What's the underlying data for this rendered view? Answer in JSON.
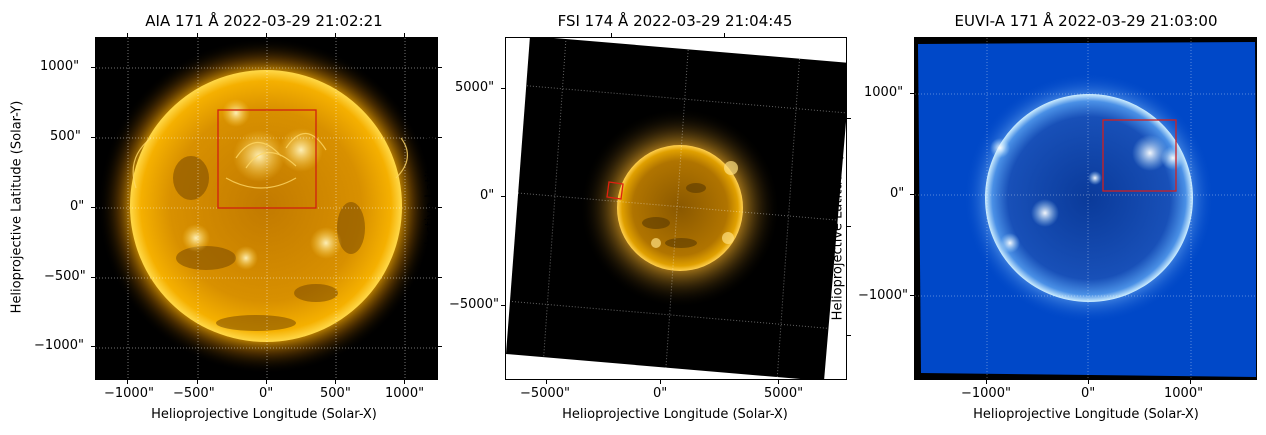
{
  "panels": [
    {
      "title": "AIA 171 Å 2022-03-29 21:02:21",
      "xlabel": "Helioprojective Longitude (Solar-X)",
      "ylabel": "Helioprojective Latitude (Solar-Y)",
      "xticks": [
        "−1000\"",
        "−500\"",
        "0\"",
        "500\"",
        "1000\""
      ],
      "yticks": [
        "1000\"",
        "500\"",
        "0\"",
        "−500\"",
        "−1000\""
      ],
      "colormap": "sdoaia171",
      "colors": {
        "disk": "#f6a800",
        "limb": "#ffcc33",
        "background": "#000000",
        "box": "#d02010"
      }
    },
    {
      "title": "FSI 174 Å 2022-03-29 21:04:45",
      "xlabel": "Helioprojective Longitude (Solar-X)",
      "ylabel": "",
      "xticks": [
        "−5000\"",
        "0\"",
        "5000\""
      ],
      "yticks": [
        "5000\"",
        "0\"",
        "−5000\""
      ],
      "colormap": "solar-orbiterfsi174",
      "colors": {
        "disk": "#c88400",
        "limb": "#ffd040",
        "background": "#000000",
        "box": "#e02010"
      }
    },
    {
      "title": "EUVI-A 171 Å 2022-03-29 21:03:00",
      "xlabel": "Helioprojective Longitude (Solar-X)",
      "ylabel": "Helioprojective Latitude (Solar-Y)",
      "xticks": [
        "−1000\"",
        "0\"",
        "1000\""
      ],
      "yticks": [
        "1000\"",
        "0\"",
        "−1000\""
      ],
      "colormap": "euvi171",
      "colors": {
        "disk": "#0a47b8",
        "limb": "#dff3ff",
        "background": "#0048c8",
        "box": "#d02020"
      }
    }
  ]
}
